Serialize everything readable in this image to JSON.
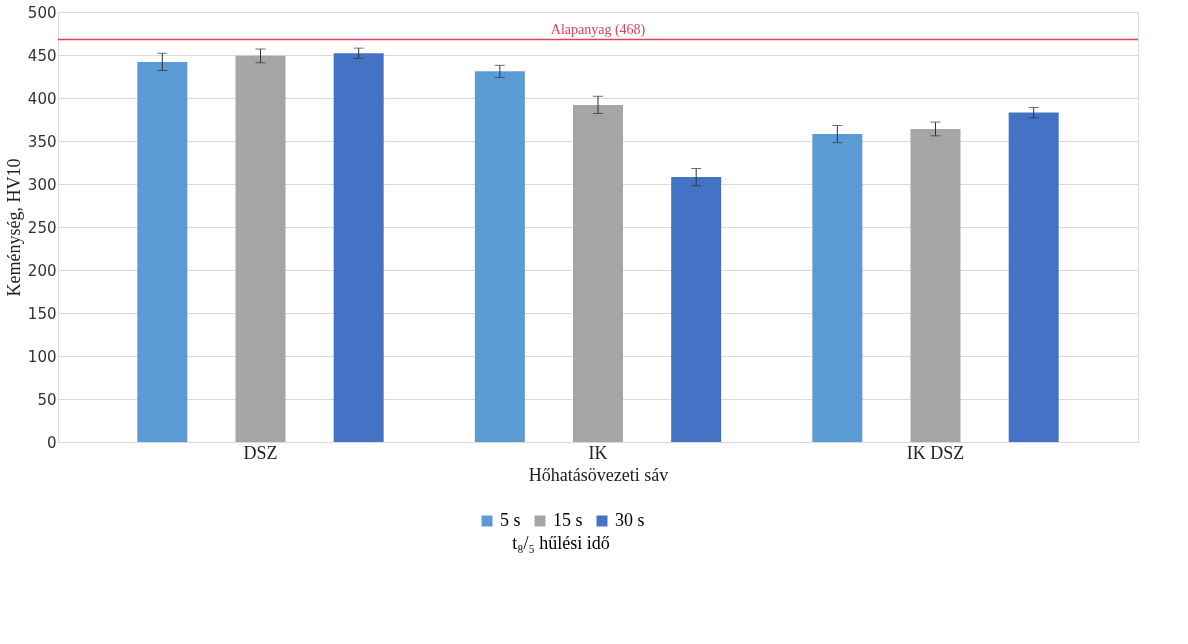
{
  "chart_data": {
    "type": "bar",
    "xlabel": "Hőhatásövezeti sáv",
    "ylabel": "Keménység, HV10",
    "legend_title": "t₈/₅ hűlési idő",
    "legend": "bottom",
    "grid": "y",
    "categories": [
      "DSZ",
      "IK",
      "IK DSZ"
    ],
    "series": [
      {
        "name": "5 s",
        "color": "#5b9bd5",
        "values": [
          442,
          431,
          358
        ],
        "errors": [
          10,
          7,
          10
        ]
      },
      {
        "name": "15 s",
        "color": "#a5a5a5",
        "values": [
          449,
          392,
          364
        ],
        "errors": [
          8,
          10,
          8
        ]
      },
      {
        "name": "30 s",
        "color": "#4472c4",
        "values": [
          452,
          308,
          383
        ],
        "errors": [
          6,
          10,
          6
        ]
      }
    ],
    "ylim": [
      0,
      500
    ],
    "yticks": [
      0,
      50,
      100,
      150,
      200,
      250,
      300,
      350,
      400,
      450,
      500
    ],
    "ref_lines": [
      {
        "axis": "y",
        "value": 468,
        "label": "Alapanyag (468)",
        "color": "#e0405a"
      }
    ]
  }
}
